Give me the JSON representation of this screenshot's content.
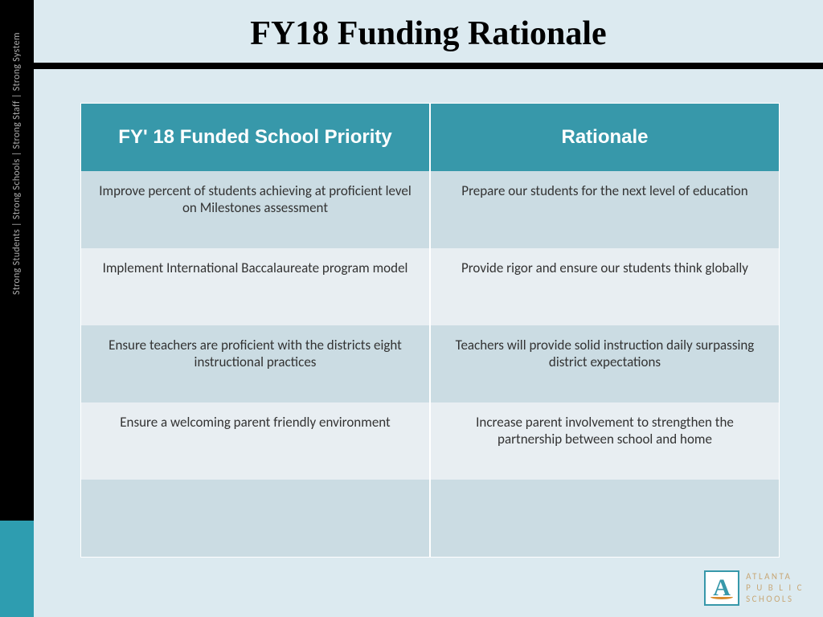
{
  "title": "FY18 Funding Rationale",
  "tagline": "Strong Students   |   Strong Schools   |   Strong Staff   |   Strong System",
  "table": {
    "columns": [
      "FY' 18 Funded School Priority",
      "Rationale"
    ],
    "header_bg": "#3798aa",
    "header_color": "#ffffff",
    "row_odd_bg": "#cbdce3",
    "row_even_bg": "#e8eef2",
    "rows": [
      [
        "Improve percent of students achieving at proficient level on Milestones assessment",
        "Prepare our students for the next level of education"
      ],
      [
        "Implement International Baccalaureate program model",
        "Provide rigor and ensure our students think globally"
      ],
      [
        "Ensure teachers are proficient with the districts eight instructional practices",
        "Teachers will provide solid instruction daily surpassing district expectations"
      ],
      [
        "Ensure a welcoming parent friendly environment",
        "Increase parent involvement to strengthen the partnership between school and home"
      ],
      [
        "",
        ""
      ]
    ]
  },
  "logo": {
    "line1": "ATLANTA",
    "line2": "P U B L I C",
    "line3": "SCHOOLS",
    "letter": "A"
  },
  "colors": {
    "page_bg": "#dceaf0",
    "left_bar": "#000000",
    "accent": "#2e9db0"
  }
}
